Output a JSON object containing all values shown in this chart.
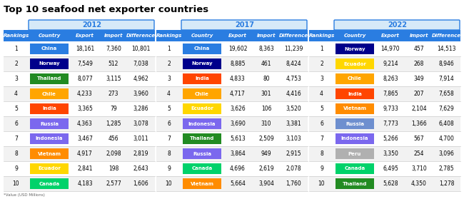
{
  "title": "Top 10 seafood net exporter countries",
  "footnote": "*Value (USD Millions)",
  "years": [
    "2012",
    "2017",
    "2022"
  ],
  "col_headers": [
    "Rankings",
    "Country",
    "Export",
    "Import",
    "Difference"
  ],
  "header_bg": "#2a7de1",
  "header_text": "white",
  "year_header_bg": "#d6eaf8",
  "year_header_border": "#2a7de1",
  "year_header_text": "#2a7de1",
  "bg_color": "white",
  "row_sep_color": "#cccccc",
  "data_2012": [
    {
      "rank": "1",
      "country": "China",
      "color": "#2a7de1",
      "export": "18,161",
      "import": "7,360",
      "diff": "10,801"
    },
    {
      "rank": "2",
      "country": "Norway",
      "color": "#00008b",
      "export": "7,549",
      "import": "512",
      "diff": "7,038"
    },
    {
      "rank": "3",
      "country": "Thailand",
      "color": "#228b22",
      "export": "8,077",
      "import": "3,115",
      "diff": "4,962"
    },
    {
      "rank": "4",
      "country": "Chile",
      "color": "#ffa500",
      "export": "4,233",
      "import": "273",
      "diff": "3,960"
    },
    {
      "rank": "5",
      "country": "India",
      "color": "#ff4500",
      "export": "3,365",
      "import": "79",
      "diff": "3,286"
    },
    {
      "rank": "6",
      "country": "Russia",
      "color": "#7b68ee",
      "export": "4,363",
      "import": "1,285",
      "diff": "3,078"
    },
    {
      "rank": "7",
      "country": "Indonesia",
      "color": "#7b68ee",
      "export": "3,467",
      "import": "456",
      "diff": "3,011"
    },
    {
      "rank": "8",
      "country": "Vietnam",
      "color": "#ff8c00",
      "export": "4,917",
      "import": "2,098",
      "diff": "2,819"
    },
    {
      "rank": "9",
      "country": "Ecuador",
      "color": "#ffd700",
      "export": "2,841",
      "import": "198",
      "diff": "2,643"
    },
    {
      "rank": "10",
      "country": "Canada",
      "color": "#00d26a",
      "export": "4,183",
      "import": "2,577",
      "diff": "1,606"
    }
  ],
  "data_2017": [
    {
      "rank": "1",
      "country": "China",
      "color": "#2a7de1",
      "export": "19,602",
      "import": "8,363",
      "diff": "11,239"
    },
    {
      "rank": "2",
      "country": "Norway",
      "color": "#00008b",
      "export": "8,885",
      "import": "461",
      "diff": "8,424"
    },
    {
      "rank": "3",
      "country": "India",
      "color": "#ff4500",
      "export": "4,833",
      "import": "80",
      "diff": "4,753"
    },
    {
      "rank": "4",
      "country": "Chile",
      "color": "#ffa500",
      "export": "4,717",
      "import": "301",
      "diff": "4,416"
    },
    {
      "rank": "5",
      "country": "Ecuador",
      "color": "#ffd700",
      "export": "3,626",
      "import": "106",
      "diff": "3,520"
    },
    {
      "rank": "6",
      "country": "Indonesia",
      "color": "#7b68ee",
      "export": "3,690",
      "import": "310",
      "diff": "3,381"
    },
    {
      "rank": "7",
      "country": "Thailand",
      "color": "#228b22",
      "export": "5,613",
      "import": "2,509",
      "diff": "3,103"
    },
    {
      "rank": "8",
      "country": "Russia",
      "color": "#7b68ee",
      "export": "3,864",
      "import": "949",
      "diff": "2,915"
    },
    {
      "rank": "9",
      "country": "Canada",
      "color": "#00d26a",
      "export": "4,696",
      "import": "2,619",
      "diff": "2,078"
    },
    {
      "rank": "10",
      "country": "Vietnam",
      "color": "#ff8c00",
      "export": "5,664",
      "import": "3,904",
      "diff": "1,760"
    }
  ],
  "data_2022": [
    {
      "rank": "1",
      "country": "Norway",
      "color": "#00008b",
      "export": "14,970",
      "import": "457",
      "diff": "14,513"
    },
    {
      "rank": "2",
      "country": "Ecuador",
      "color": "#ffd700",
      "export": "9,214",
      "import": "268",
      "diff": "8,946"
    },
    {
      "rank": "3",
      "country": "Chile",
      "color": "#ffa500",
      "export": "8,263",
      "import": "349",
      "diff": "7,914"
    },
    {
      "rank": "4",
      "country": "India",
      "color": "#ff4500",
      "export": "7,865",
      "import": "207",
      "diff": "7,658"
    },
    {
      "rank": "5",
      "country": "Vietnam",
      "color": "#ff8c00",
      "export": "9,733",
      "import": "2,104",
      "diff": "7,629"
    },
    {
      "rank": "6",
      "country": "Russia",
      "color": "#6e8fcf",
      "export": "7,773",
      "import": "1,366",
      "diff": "6,408"
    },
    {
      "rank": "7",
      "country": "Indonesia",
      "color": "#7b68ee",
      "export": "5,266",
      "import": "567",
      "diff": "4,700"
    },
    {
      "rank": "8",
      "country": "Peru",
      "color": "#b0b0b0",
      "export": "3,350",
      "import": "254",
      "diff": "3,096"
    },
    {
      "rank": "9",
      "country": "Canada",
      "color": "#00d26a",
      "export": "6,495",
      "import": "3,710",
      "diff": "2,785"
    },
    {
      "rank": "10",
      "country": "Thailand",
      "color": "#228b22",
      "export": "5,628",
      "import": "4,350",
      "diff": "1,278"
    }
  ]
}
